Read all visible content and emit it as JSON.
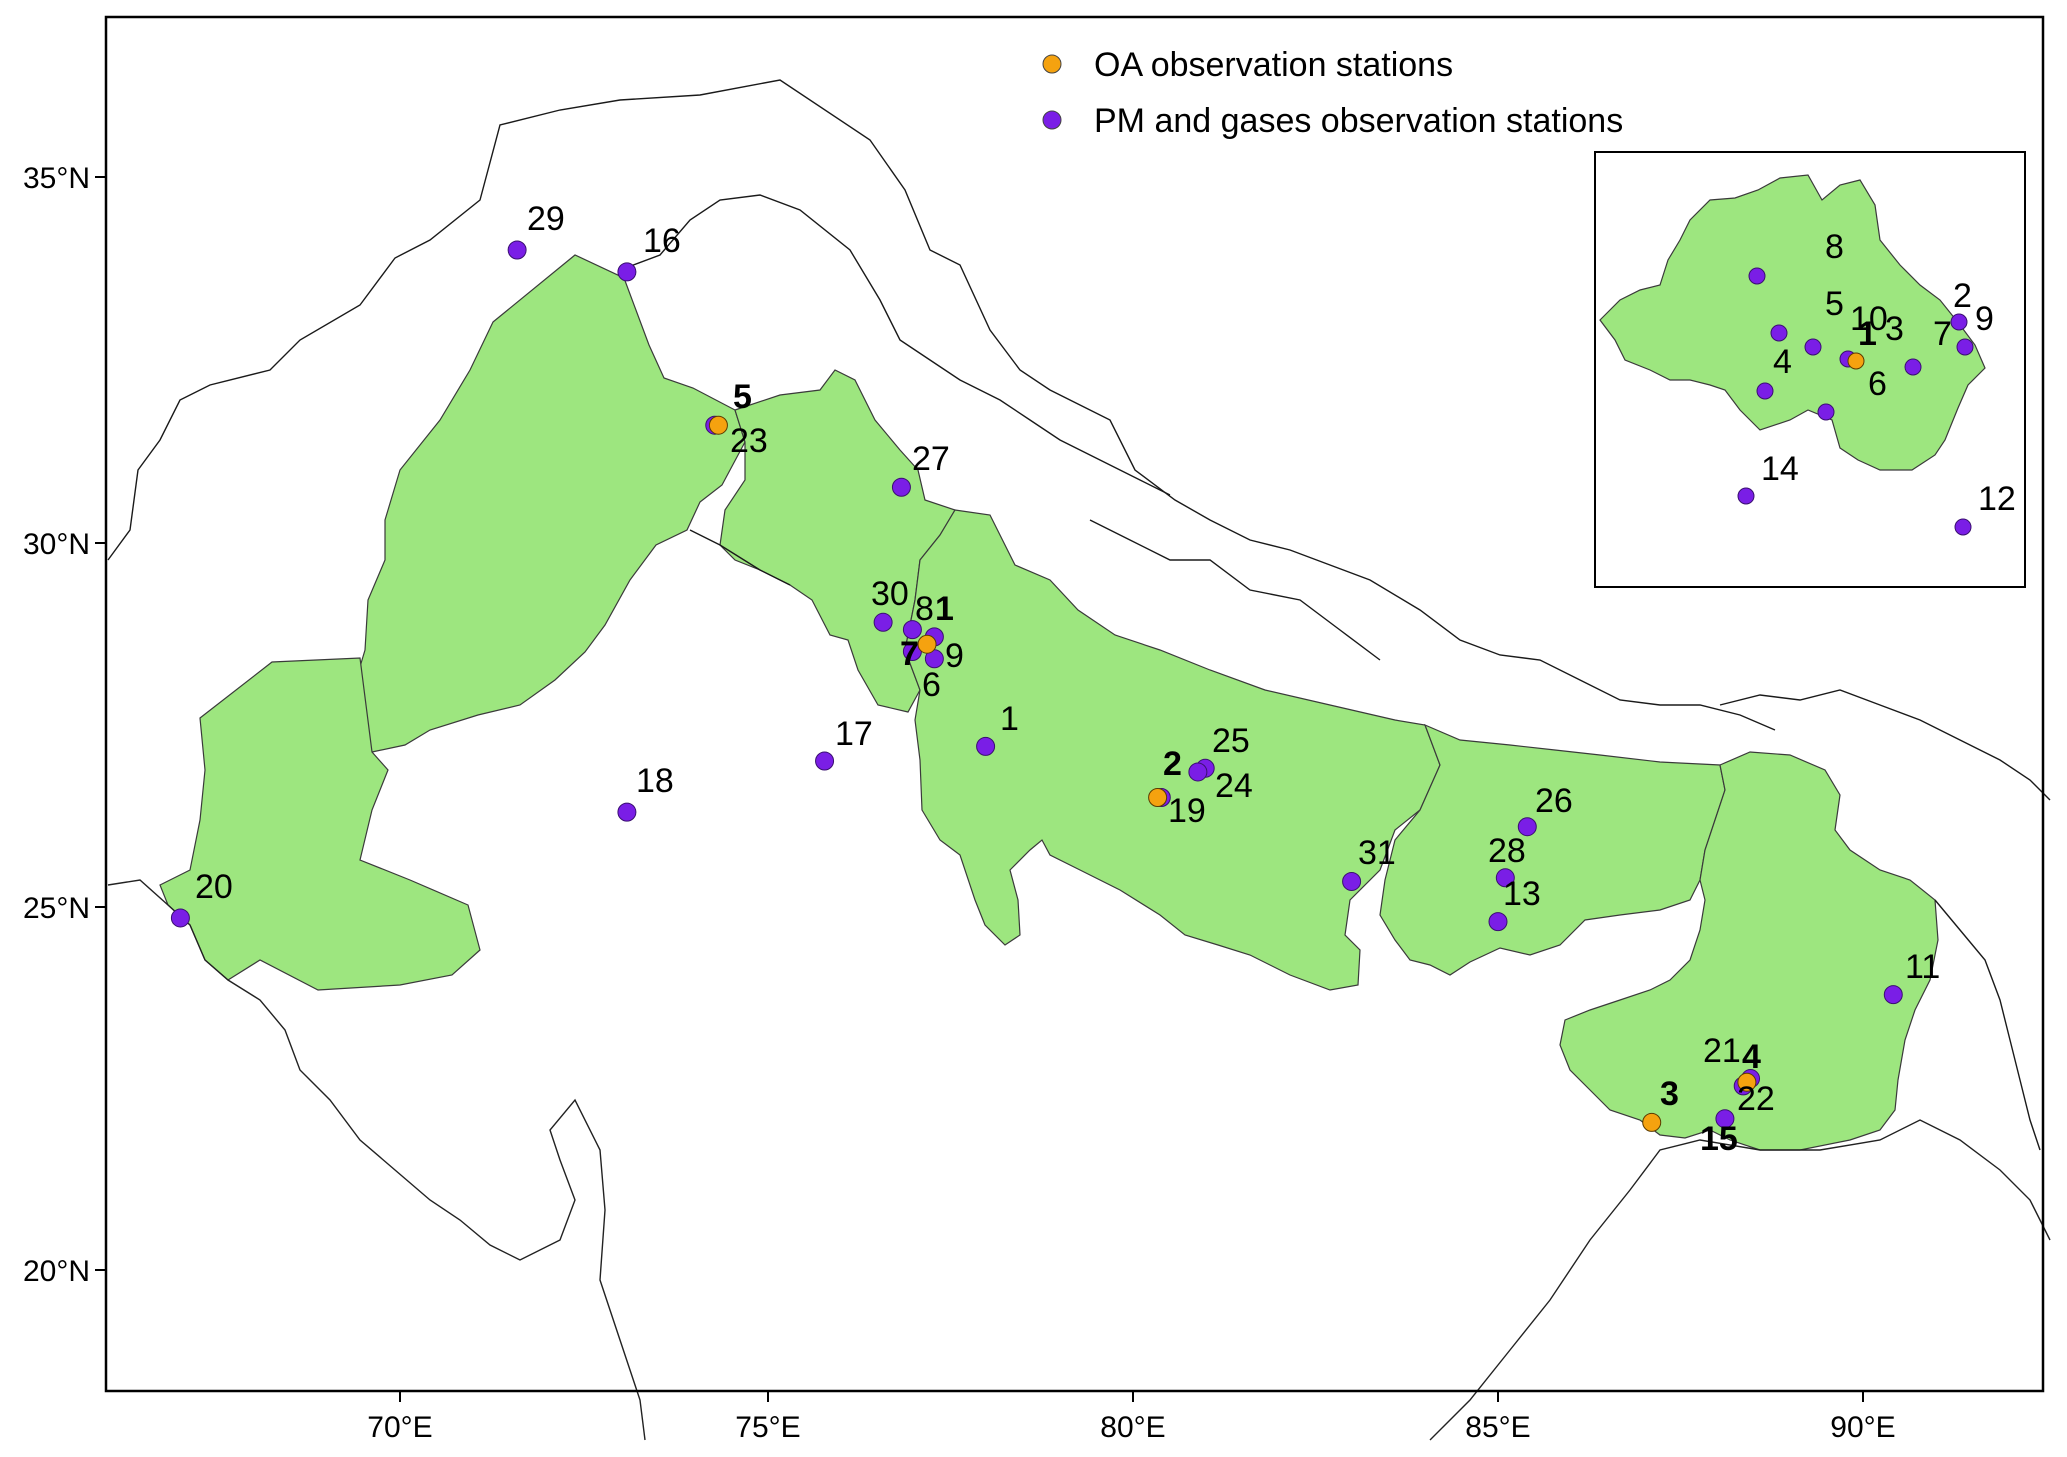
{
  "legend": {
    "oa_label": "OA observation stations",
    "pm_label": "PM and gases observation stations",
    "oa_color": "#f5a20f",
    "pm_color": "#7a1ee6"
  },
  "colors": {
    "region_fill": "#9de67f",
    "background": "#ffffff"
  },
  "axes": {
    "x_ticks": [
      "70°E",
      "75°E",
      "80°E",
      "85°E",
      "90°E"
    ],
    "y_ticks": [
      "35°N",
      "30°N",
      "25°N",
      "20°N"
    ]
  },
  "stations": {
    "oa": [
      {
        "id": "1",
        "lon": 77.2,
        "lat": 28.6
      },
      {
        "id": "2",
        "lon": 80.35,
        "lat": 26.5
      },
      {
        "id": "3",
        "lon": 87.1,
        "lat": 22.05
      },
      {
        "id": "4",
        "lon": 88.4,
        "lat": 22.6
      },
      {
        "id": "5",
        "lon": 74.35,
        "lat": 31.6
      }
    ],
    "pm": [
      {
        "id": "1",
        "lon": 78.0,
        "lat": 27.2
      },
      {
        "id": "6",
        "lon": 77.3,
        "lat": 28.4
      },
      {
        "id": "7",
        "lon": 77.0,
        "lat": 28.5
      },
      {
        "id": "8",
        "lon": 77.0,
        "lat": 28.8
      },
      {
        "id": "9",
        "lon": 77.3,
        "lat": 28.7
      },
      {
        "id": "11",
        "lon": 90.4,
        "lat": 23.8
      },
      {
        "id": "13",
        "lon": 85.0,
        "lat": 24.8
      },
      {
        "id": "15",
        "lon": 88.1,
        "lat": 22.1
      },
      {
        "id": "16",
        "lon": 73.1,
        "lat": 33.7
      },
      {
        "id": "17",
        "lon": 75.8,
        "lat": 27.0
      },
      {
        "id": "18",
        "lon": 73.1,
        "lat": 26.3
      },
      {
        "id": "19",
        "lon": 80.4,
        "lat": 26.5
      },
      {
        "id": "20",
        "lon": 67.0,
        "lat": 24.85
      },
      {
        "id": "21",
        "lon": 88.45,
        "lat": 22.65
      },
      {
        "id": "22",
        "lon": 88.35,
        "lat": 22.55
      },
      {
        "id": "23",
        "lon": 74.3,
        "lat": 31.6
      },
      {
        "id": "24",
        "lon": 81.0,
        "lat": 26.9
      },
      {
        "id": "25",
        "lon": 80.9,
        "lat": 26.85
      },
      {
        "id": "26",
        "lon": 85.4,
        "lat": 26.1
      },
      {
        "id": "27",
        "lon": 76.85,
        "lat": 30.75
      },
      {
        "id": "28",
        "lon": 85.1,
        "lat": 25.4
      },
      {
        "id": "29",
        "lon": 71.6,
        "lat": 34.0
      },
      {
        "id": "30",
        "lon": 76.6,
        "lat": 28.9
      },
      {
        "id": "31",
        "lon": 83.0,
        "lat": 25.35
      }
    ]
  },
  "map_labels": [
    {
      "text": "29",
      "bold": false
    },
    {
      "text": "16",
      "bold": false
    },
    {
      "text": "5",
      "bold": true
    },
    {
      "text": "23",
      "bold": false
    },
    {
      "text": "27",
      "bold": false
    },
    {
      "text": "30",
      "bold": false
    },
    {
      "text": "8",
      "bold": false
    },
    {
      "text": "1",
      "bold": true
    },
    {
      "text": "7",
      "bold": true
    },
    {
      "text": "9",
      "bold": false
    },
    {
      "text": "6",
      "bold": false
    },
    {
      "text": "1",
      "bold": false
    },
    {
      "text": "17",
      "bold": false
    },
    {
      "text": "18",
      "bold": false
    },
    {
      "text": "2",
      "bold": true
    },
    {
      "text": "25",
      "bold": false
    },
    {
      "text": "24",
      "bold": false
    },
    {
      "text": "19",
      "bold": false
    },
    {
      "text": "31",
      "bold": false
    },
    {
      "text": "26",
      "bold": false
    },
    {
      "text": "28",
      "bold": false
    },
    {
      "text": "13",
      "bold": false
    },
    {
      "text": "20",
      "bold": false
    },
    {
      "text": "11",
      "bold": false
    },
    {
      "text": "21",
      "bold": false
    },
    {
      "text": "4",
      "bold": true
    },
    {
      "text": "3",
      "bold": true
    },
    {
      "text": "22",
      "bold": false
    },
    {
      "text": "15",
      "bold": false
    }
  ],
  "inset": {
    "oa": [
      {
        "id": "1"
      }
    ],
    "pm": [
      {
        "id": "8"
      },
      {
        "id": "5"
      },
      {
        "id": "10"
      },
      {
        "id": "3"
      },
      {
        "id": "2"
      },
      {
        "id": "9"
      },
      {
        "id": "7"
      },
      {
        "id": "4"
      },
      {
        "id": "6"
      },
      {
        "id": "14"
      },
      {
        "id": "12"
      }
    ],
    "labels": [
      {
        "text": "8",
        "bold": false
      },
      {
        "text": "2",
        "bold": false
      },
      {
        "text": "9",
        "bold": false
      },
      {
        "text": "5",
        "bold": false
      },
      {
        "text": "10",
        "bold": false
      },
      {
        "text": "1",
        "bold": true
      },
      {
        "text": "3",
        "bold": false
      },
      {
        "text": "7",
        "bold": false
      },
      {
        "text": "4",
        "bold": false
      },
      {
        "text": "6",
        "bold": false
      },
      {
        "text": "14",
        "bold": false
      },
      {
        "text": "12",
        "bold": false
      }
    ]
  }
}
